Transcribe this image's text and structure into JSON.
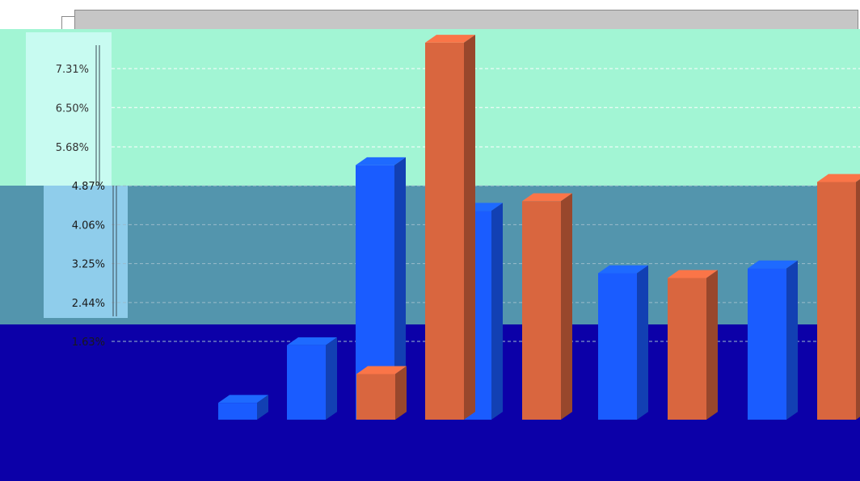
{
  "chart_data": {
    "type": "bar",
    "y_tick_labels": [
      "7.31%",
      "6.50%",
      "5.68%",
      "4.87%",
      "4.06%",
      "3.25%",
      "2.44%",
      "1.63%"
    ],
    "y_ticks": [
      7.31,
      6.5,
      5.68,
      4.87,
      4.06,
      3.25,
      2.44,
      1.63
    ],
    "ylim": [
      0.0,
      8.0
    ],
    "grid": true,
    "series": [
      {
        "color": "#1a5cff",
        "values": [
          0.35,
          1.55,
          5.3,
          4.35,
          3.05,
          3.15
        ]
      },
      {
        "color": "#d9663f",
        "values": [
          0.0,
          0.95,
          7.85,
          4.55,
          2.95,
          4.95
        ]
      }
    ],
    "band_colors": {
      "top_bg": "#a2f5d4",
      "mid_bg": "#5395ad",
      "bottom_bg": "#0c00a8",
      "axis_panel_top": "#c8fbf1",
      "axis_panel_mid": "#8fcdeb"
    }
  }
}
